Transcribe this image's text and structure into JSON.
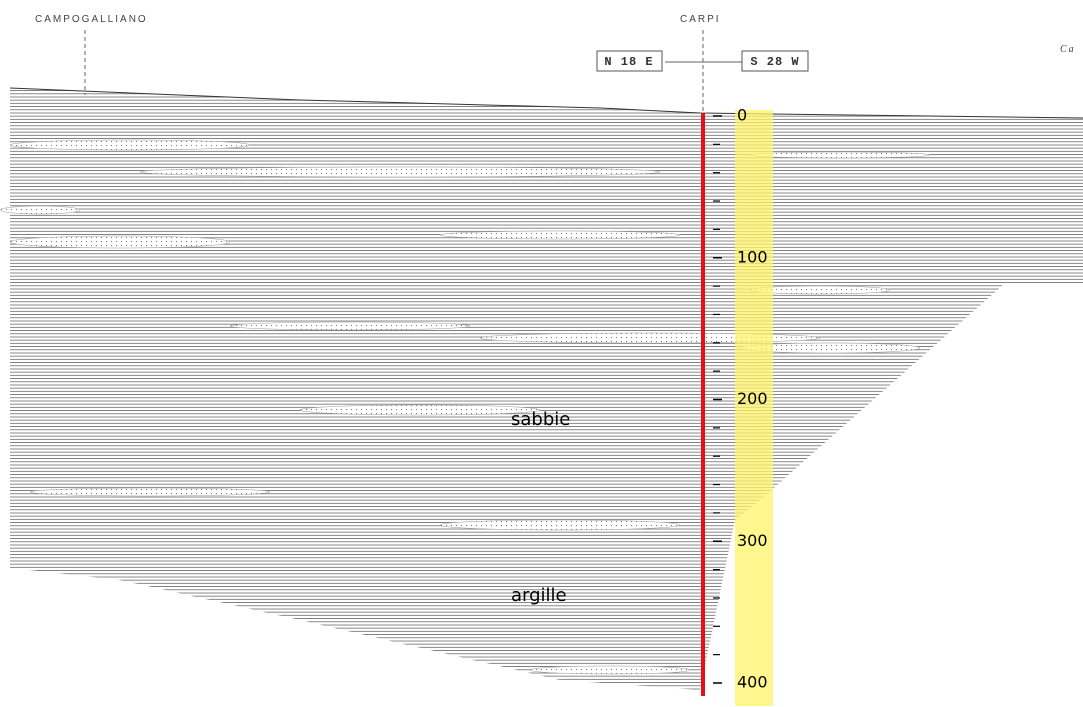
{
  "header": {
    "left_place": "CAMPOGALLIANO",
    "center_place": "CARPI",
    "right_place": "Ca",
    "left_direction": "N 18 E",
    "right_direction": "S 28 W"
  },
  "scale": {
    "ticks": [
      0,
      100,
      200,
      300,
      400
    ]
  },
  "layers": [
    "sabbie",
    "argille"
  ]
}
